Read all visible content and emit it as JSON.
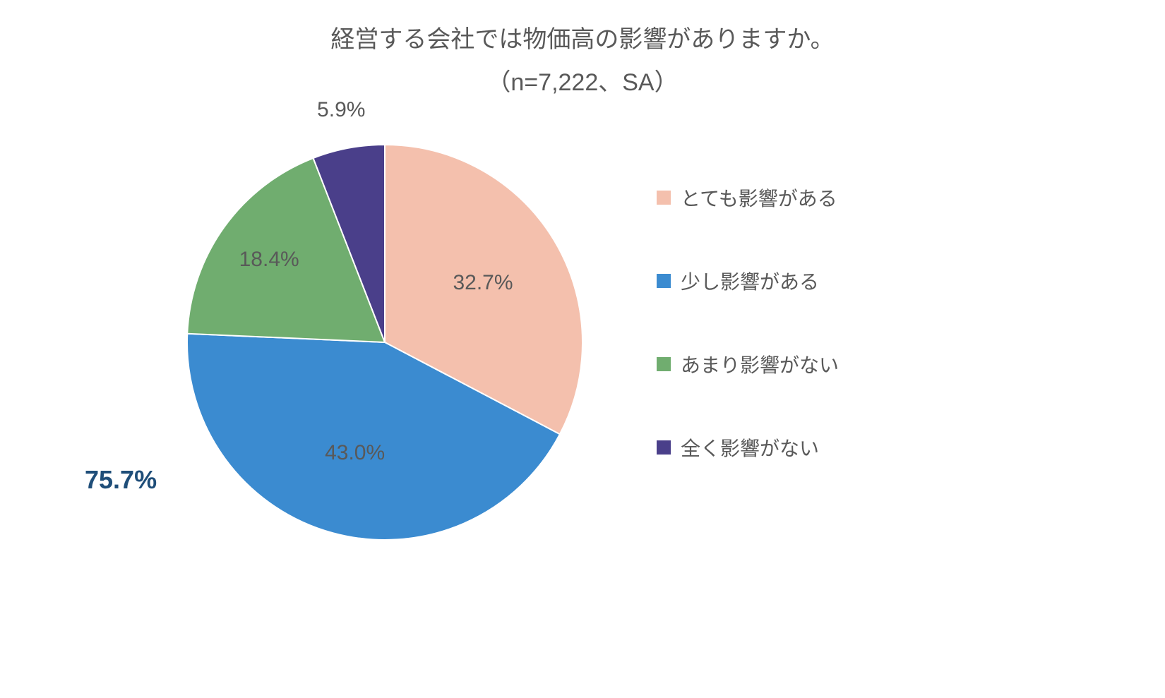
{
  "title": "経営する会社では物価高の影響がありますか。",
  "subtitle": "（n=7,222、SA）",
  "chart": {
    "type": "pie",
    "background_color": "#ffffff",
    "stroke_color": "#ffffff",
    "stroke_width": 2,
    "radius": 280,
    "start_angle_deg": -90,
    "title_fontsize": 34,
    "title_color": "#595959",
    "label_fontsize": 30,
    "label_color": "#595959",
    "legend_fontsize": 28,
    "legend_swatch_size": 20,
    "slices": [
      {
        "label": "とても影響がある",
        "value": 32.7,
        "display": "32.7%",
        "color": "#f4c0ad"
      },
      {
        "label": "少し影響がある",
        "value": 43.0,
        "display": "43.0%",
        "color": "#3b8bd0"
      },
      {
        "label": "あまり影響がない",
        "value": 18.4,
        "display": "18.4%",
        "color": "#70ad6f"
      },
      {
        "label": "全く影響がない",
        "value": 5.9,
        "display": "5.9%",
        "color": "#4a3f8a"
      }
    ],
    "callout": {
      "text": "75.7%",
      "color": "#1f4e79",
      "fontsize": 36,
      "fontweight": "bold"
    }
  }
}
